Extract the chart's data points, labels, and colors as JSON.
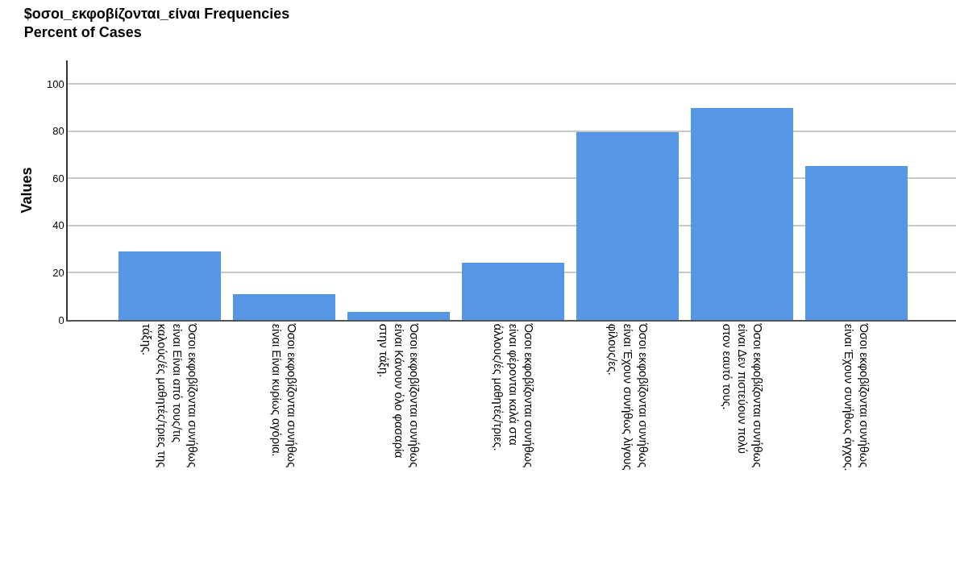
{
  "chart_data": {
    "type": "bar",
    "title": "$οσοι_εκφοβίζονται_είναι Frequencies",
    "subtitle": "Percent of Cases",
    "ylabel": "Values",
    "categories": [
      "Όσοι εκφοβίζονται συνήθως είναι Είναι από τους/τις καλούς/ές μαθητές/τριες της τάξης.",
      "Όσοι εκφοβίζονται συνήθως είναι Είναι κυρίως αγόρια.",
      "Όσοι εκφοβίζονται συνήθως είναι Κάνουν όλο φασαρία στην τάξη.",
      "Όσοι εκφοβίζονται συνήθως είναι φέρονται καλά στα άλλους/ές μαθητές/τριες.",
      "Όσοι εκφοβίζονται συνήθως είναι Έχουν συνήθως λίγους φίλους/ες.",
      "Όσοι εκφοβίζονται συνήθως είναι Δεν πιστεύουν πολύ στον εαυτό τους.",
      "Όσοι εκφοβίζονται συνήθως είναι Έχουν συνήθως άγχος."
    ],
    "values": [
      29.2,
      11,
      3.4,
      24.4,
      79.7,
      90,
      65.3
    ],
    "color": "#5596e5",
    "ylim": [
      0,
      110
    ],
    "yticks": [
      0,
      20,
      40,
      60,
      80,
      100
    ],
    "grid": "y"
  }
}
